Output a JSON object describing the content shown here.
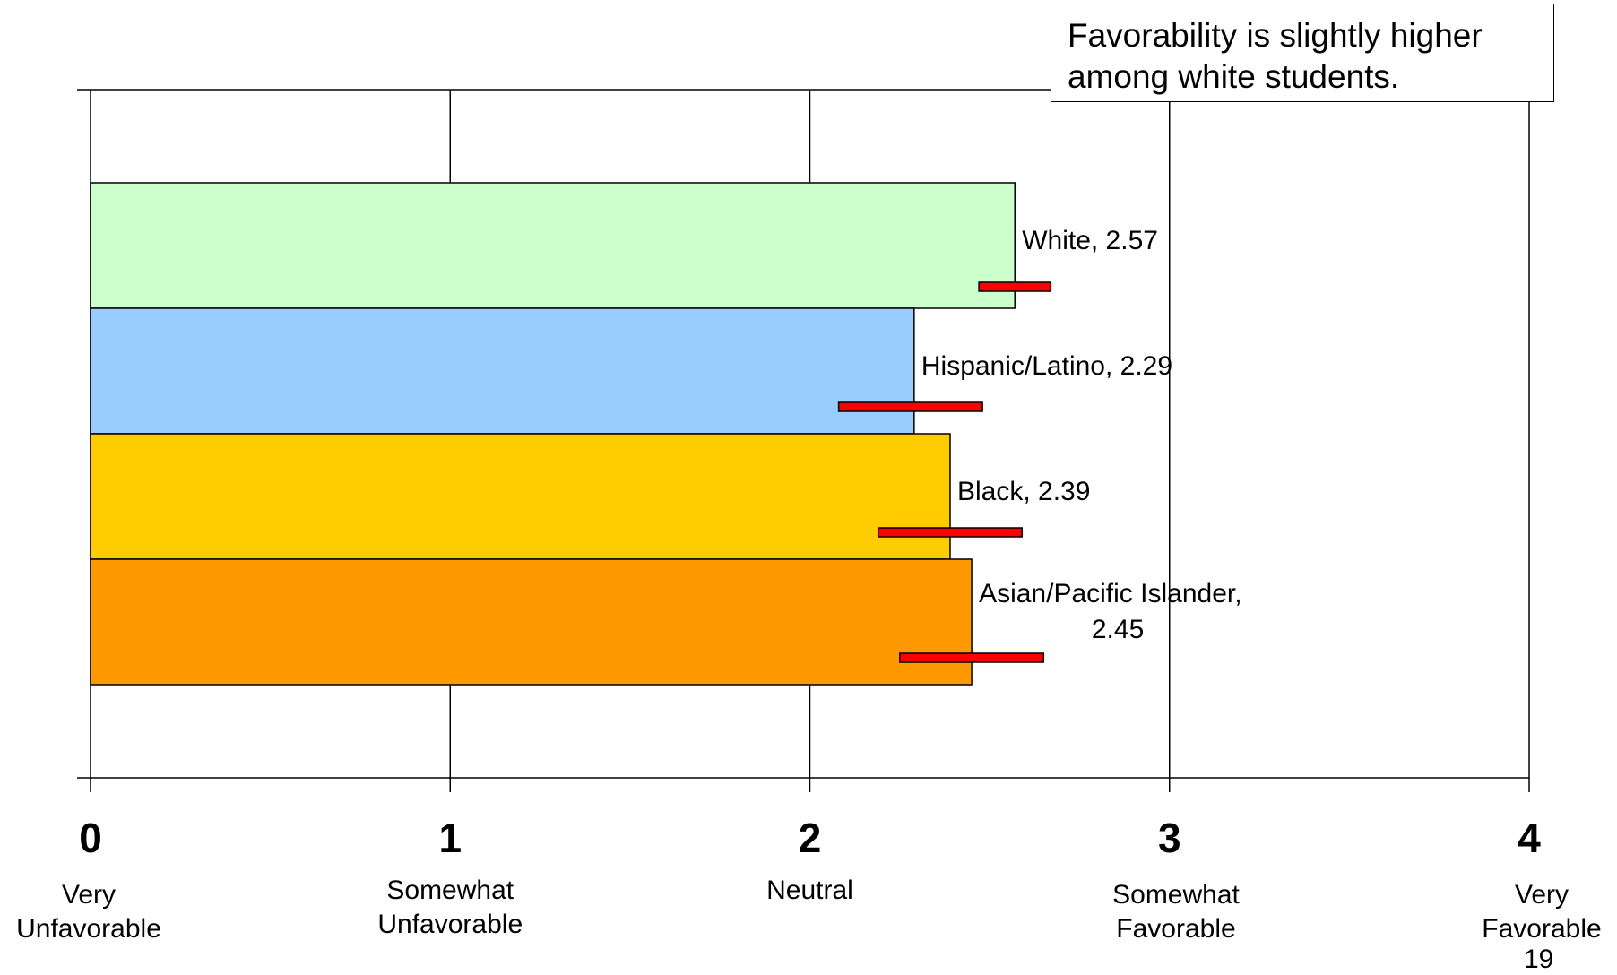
{
  "callout": {
    "text": "Favorability is slightly higher among white students."
  },
  "page_number": "19",
  "chart_data": {
    "type": "bar",
    "orientation": "horizontal",
    "categories": [
      "White",
      "Hispanic/Latino",
      "Black",
      "Asian/Pacific Islander"
    ],
    "values": [
      2.57,
      2.29,
      2.39,
      2.45
    ],
    "data_labels": [
      "White, 2.57",
      "Hispanic/Latino, 2.29",
      "Black, 2.39",
      "Asian/Pacific Islander, 2.45"
    ],
    "error_bars": [
      {
        "low": 2.47,
        "high": 2.67
      },
      {
        "low": 2.08,
        "high": 2.48
      },
      {
        "low": 2.19,
        "high": 2.59
      },
      {
        "low": 2.25,
        "high": 2.65
      }
    ],
    "colors": [
      "#CCFFCC",
      "#99CCFF",
      "#FFCC00",
      "#FF9900"
    ],
    "error_bar_color": "#FF0000",
    "xlim": [
      0,
      4
    ],
    "grid": true,
    "x_ticks": [
      {
        "value": 0,
        "label": "0",
        "desc": [
          "Very",
          "Unfavorable"
        ]
      },
      {
        "value": 1,
        "label": "1",
        "desc": [
          "Somewhat",
          "Unfavorable"
        ]
      },
      {
        "value": 2,
        "label": "2",
        "desc": [
          "Neutral"
        ]
      },
      {
        "value": 3,
        "label": "3",
        "desc": [
          "Somewhat",
          "Favorable"
        ]
      },
      {
        "value": 4,
        "label": "4",
        "desc": [
          "Very",
          "Favorable"
        ]
      }
    ]
  }
}
